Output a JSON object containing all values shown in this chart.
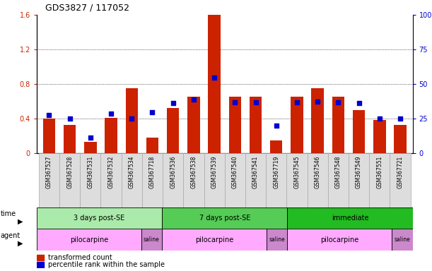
{
  "title": "GDS3827 / 117052",
  "samples": [
    "GSM367527",
    "GSM367528",
    "GSM367531",
    "GSM367532",
    "GSM367534",
    "GSM367718",
    "GSM367536",
    "GSM367538",
    "GSM367539",
    "GSM367540",
    "GSM367541",
    "GSM367719",
    "GSM367545",
    "GSM367546",
    "GSM367548",
    "GSM367549",
    "GSM367551",
    "GSM367721"
  ],
  "red_values": [
    0.4,
    0.33,
    0.13,
    0.41,
    0.75,
    0.18,
    0.52,
    0.65,
    1.6,
    0.65,
    0.65,
    0.15,
    0.65,
    0.75,
    0.65,
    0.5,
    0.38,
    0.33
  ],
  "blue_values_pct": [
    27.5,
    25.0,
    11.3,
    28.8,
    25.0,
    29.4,
    36.3,
    38.8,
    54.4,
    36.9,
    36.9,
    20.0,
    36.9,
    37.5,
    36.9,
    36.3,
    25.0,
    25.0
  ],
  "time_groups": [
    {
      "label": "3 days post-SE",
      "start": 0,
      "end": 6,
      "color": "#aaeaaa"
    },
    {
      "label": "7 days post-SE",
      "start": 6,
      "end": 12,
      "color": "#55cc55"
    },
    {
      "label": "immediate",
      "start": 12,
      "end": 18,
      "color": "#22bb22"
    }
  ],
  "agent_groups": [
    {
      "label": "pilocarpine",
      "start": 0,
      "end": 5,
      "color": "#ffaaff"
    },
    {
      "label": "saline",
      "start": 5,
      "end": 6,
      "color": "#cc88cc"
    },
    {
      "label": "pilocarpine",
      "start": 6,
      "end": 11,
      "color": "#ffaaff"
    },
    {
      "label": "saline",
      "start": 11,
      "end": 12,
      "color": "#cc88cc"
    },
    {
      "label": "pilocarpine",
      "start": 12,
      "end": 17,
      "color": "#ffaaff"
    },
    {
      "label": "saline",
      "start": 17,
      "end": 18,
      "color": "#cc88cc"
    }
  ],
  "ylim_left": [
    0,
    1.6
  ],
  "ylim_right": [
    0,
    100
  ],
  "yticks_left": [
    0,
    0.4,
    0.8,
    1.2,
    1.6
  ],
  "yticks_right": [
    0,
    25,
    50,
    75,
    100
  ],
  "red_color": "#CC2200",
  "blue_color": "#0000CC",
  "legend_red": "transformed count",
  "legend_blue": "percentile rank within the sample",
  "sample_box_color": "#dddddd",
  "sample_box_edge": "#aaaaaa"
}
